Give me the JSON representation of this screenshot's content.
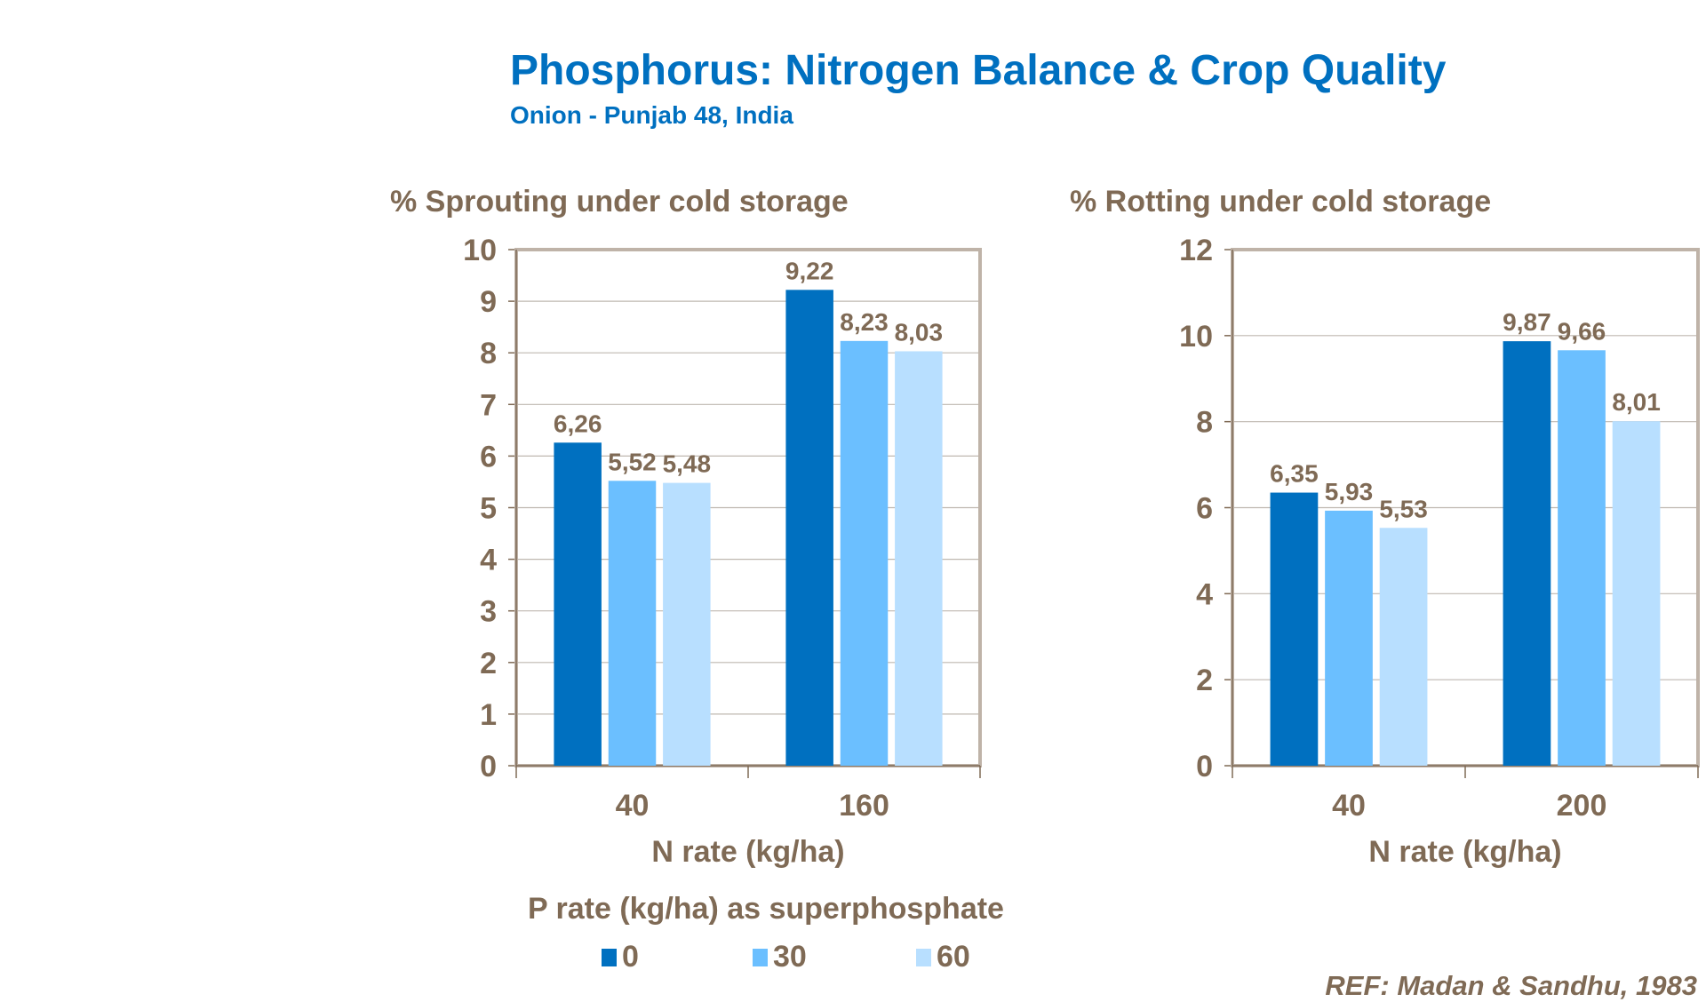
{
  "header": {
    "title": "Phosphorus: Nitrogen Balance & Crop Quality",
    "subtitle": "Onion  - Punjab  48, India"
  },
  "colors": {
    "series": [
      "#0070C0",
      "#6BBFFF",
      "#B8DFFF"
    ],
    "text": "#7F6A55",
    "axis": "#BFB3A8",
    "grid": "#BFB8B0",
    "title": "#0070C0"
  },
  "legend": {
    "title": "P rate (kg/ha) as superphosphate",
    "items": [
      "0",
      "30",
      "60"
    ]
  },
  "reference": "REF: Madan & Sandhu,  1983",
  "chart_data": [
    {
      "type": "bar",
      "title": "% Sprouting under cold storage",
      "xlabel": "N rate (kg/ha)",
      "ylabel": "",
      "categories": [
        "40",
        "160"
      ],
      "series": [
        {
          "name": "0",
          "values": [
            6.26,
            9.22
          ],
          "labels": [
            "6,26",
            "9,22"
          ]
        },
        {
          "name": "30",
          "values": [
            5.52,
            8.23
          ],
          "labels": [
            "5,52",
            "8,23"
          ]
        },
        {
          "name": "60",
          "values": [
            5.48,
            8.03
          ],
          "labels": [
            "5,48",
            "8,03"
          ]
        }
      ],
      "ylim": [
        0,
        10
      ],
      "yticks": [
        "0",
        "1",
        "2",
        "3",
        "4",
        "5",
        "6",
        "7",
        "8",
        "9",
        "10"
      ],
      "grid": true,
      "legend": "bottom"
    },
    {
      "type": "bar",
      "title": "% Rotting under cold storage",
      "xlabel": "N rate (kg/ha)",
      "ylabel": "",
      "categories": [
        "40",
        "200"
      ],
      "series": [
        {
          "name": "0",
          "values": [
            6.35,
            9.87
          ],
          "labels": [
            "6,35",
            "9,87"
          ]
        },
        {
          "name": "30",
          "values": [
            5.93,
            9.66
          ],
          "labels": [
            "5,93",
            "9,66"
          ]
        },
        {
          "name": "60",
          "values": [
            5.53,
            8.01
          ],
          "labels": [
            "5,53",
            "8,01"
          ]
        }
      ],
      "ylim": [
        0,
        12
      ],
      "yticks": [
        "0",
        "2",
        "4",
        "6",
        "8",
        "10",
        "12"
      ],
      "grid": true,
      "legend": "bottom"
    }
  ]
}
